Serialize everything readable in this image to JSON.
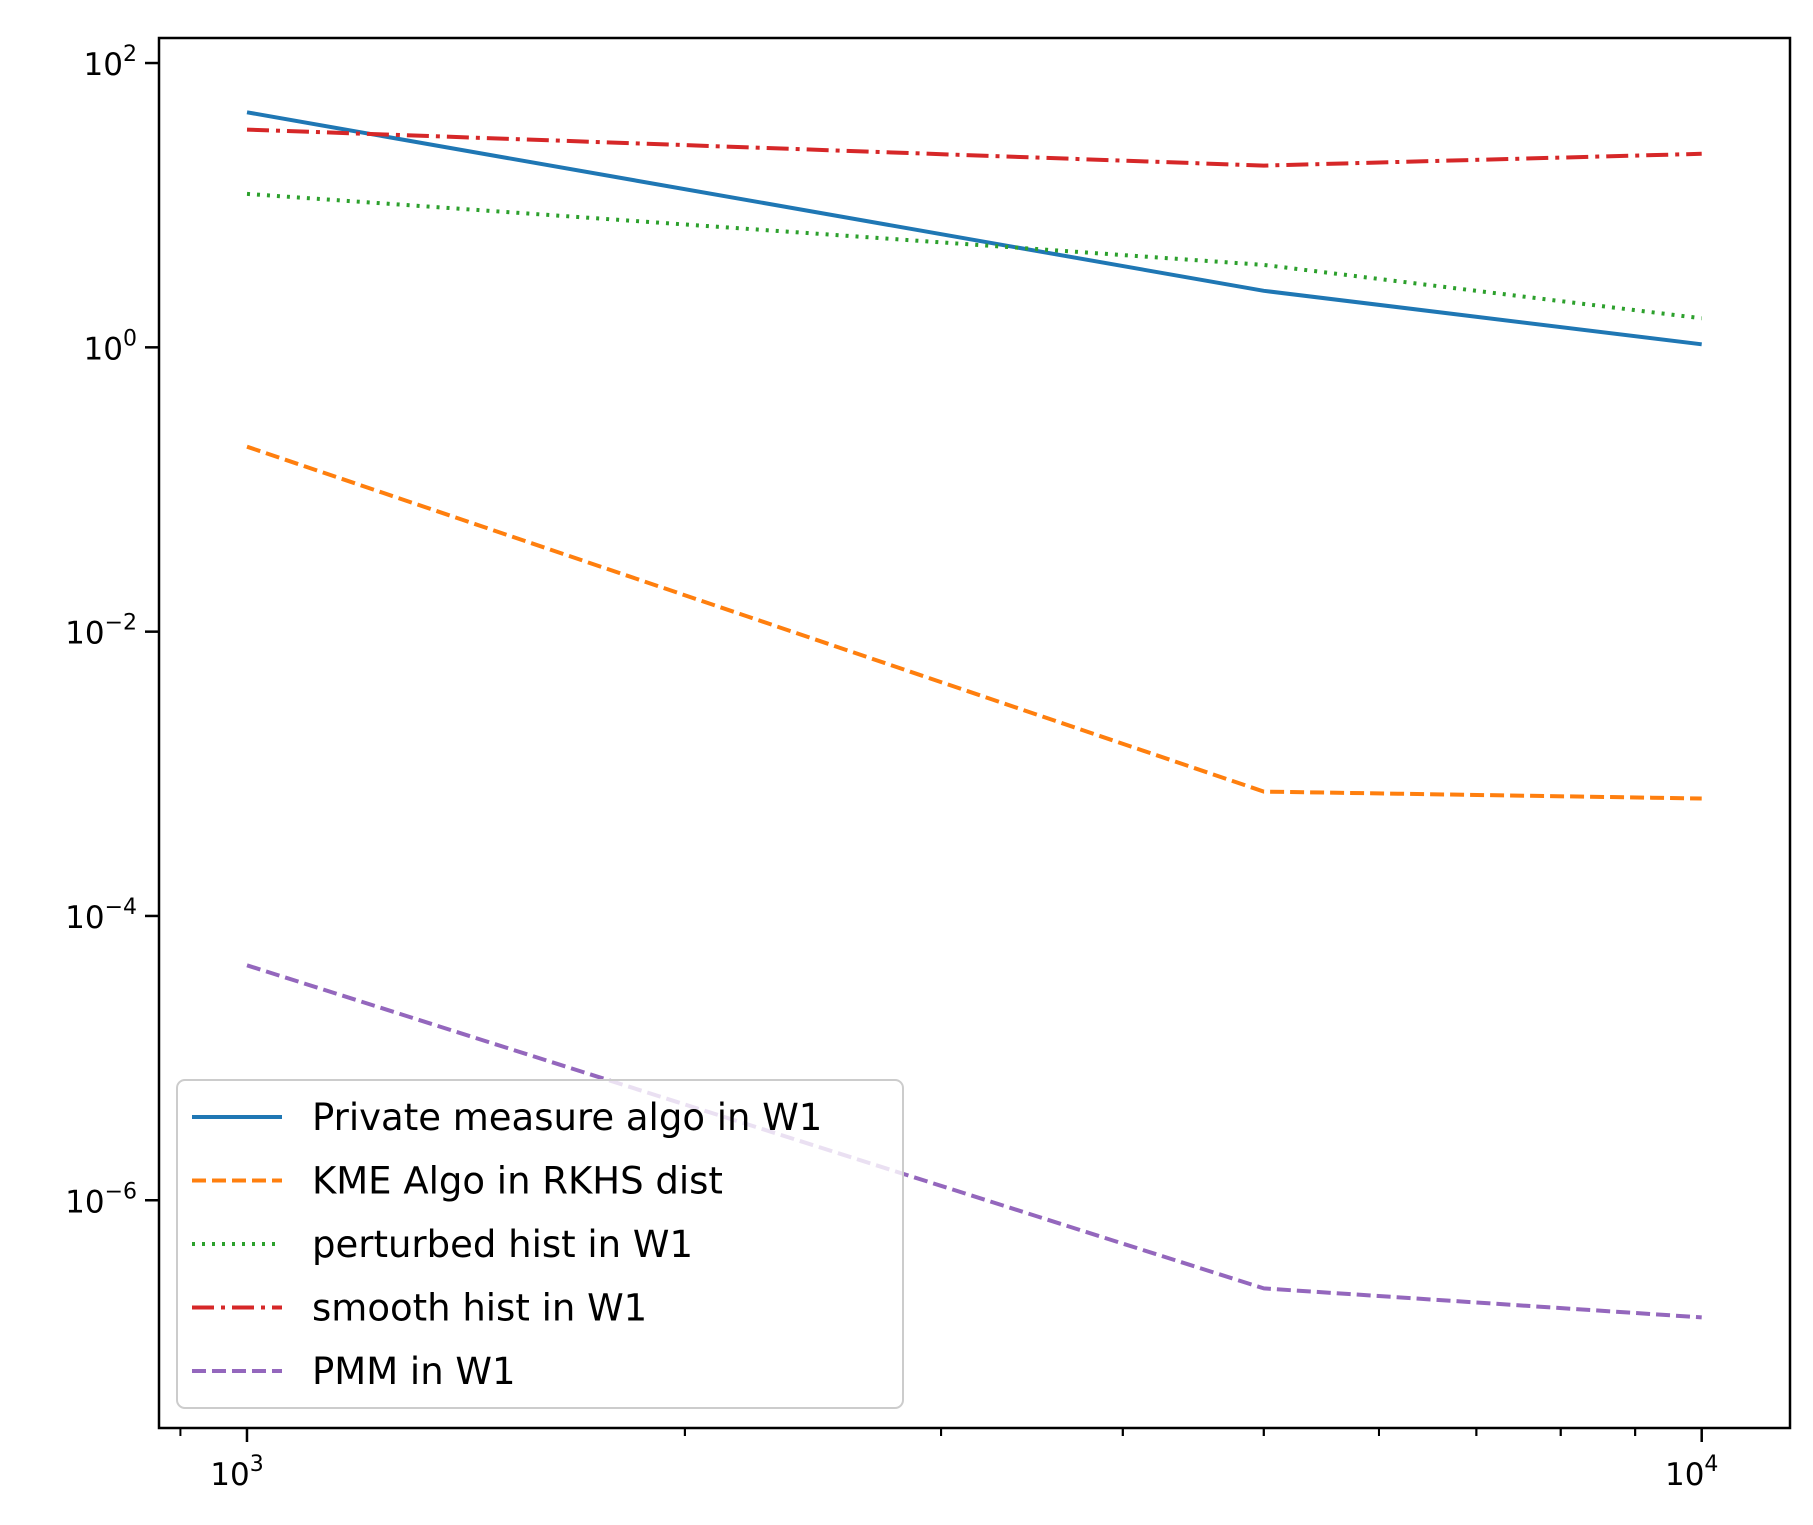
{
  "chart_data": {
    "type": "line",
    "title": "",
    "xlabel": "",
    "ylabel": "",
    "xscale": "log",
    "yscale": "log",
    "xlim": [
      870,
      11500
    ],
    "ylim": [
      2.5e-08,
      150
    ],
    "grid": false,
    "legend_position": "lower-left",
    "x_ticks": [
      {
        "base": "10",
        "exp": "3",
        "value": 1000
      },
      {
        "base": "10",
        "exp": "4",
        "value": 10000
      }
    ],
    "y_ticks": [
      {
        "base": "10",
        "exp": "2",
        "value": 100
      },
      {
        "base": "10",
        "exp": "0",
        "value": 1
      },
      {
        "base": "10",
        "exp": "−2",
        "value": 0.01
      },
      {
        "base": "10",
        "exp": "−4",
        "value": 0.0001
      },
      {
        "base": "10",
        "exp": "−6",
        "value": 1e-06
      }
    ],
    "x": [
      1000,
      5000,
      10000
    ],
    "series": [
      {
        "name": "Private measure algo in W1",
        "color": "#1f77b4",
        "style": "solid",
        "values": [
          45,
          2.5,
          1.05
        ]
      },
      {
        "name": "KME Algo in RKHS dist",
        "color": "#ff7f0e",
        "style": "dashed",
        "values": [
          0.2,
          0.00075,
          0.00067
        ]
      },
      {
        "name": "perturbed hist in W1",
        "color": "#2ca02c",
        "style": "dotted",
        "values": [
          12,
          3.8,
          1.6
        ]
      },
      {
        "name": "smooth hist in W1",
        "color": "#d62728",
        "style": "dashdot",
        "values": [
          34,
          19,
          23
        ]
      },
      {
        "name": "PMM in W1",
        "color": "#9467bd",
        "style": "dashed",
        "values": [
          4.5e-05,
          2.4e-07,
          1.5e-07
        ]
      }
    ]
  }
}
